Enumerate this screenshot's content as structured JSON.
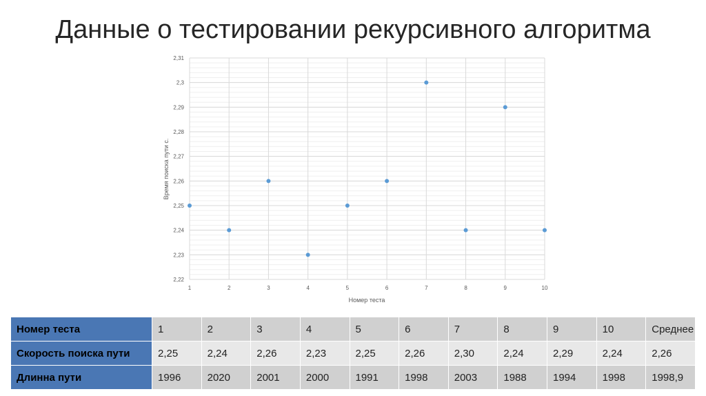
{
  "slide": {
    "title": "Данные о тестировании рекурсивного алгоритма"
  },
  "chart_data": {
    "type": "scatter",
    "x": [
      1,
      2,
      3,
      4,
      5,
      6,
      7,
      8,
      9,
      10
    ],
    "y": [
      2.25,
      2.24,
      2.26,
      2.23,
      2.25,
      2.26,
      2.3,
      2.24,
      2.29,
      2.24
    ],
    "xlabel": "Номер теста",
    "ylabel": "Время поиска пути с.",
    "xlim": [
      1,
      10
    ],
    "ylim": [
      2.22,
      2.31
    ],
    "x_ticks": [
      "1",
      "2",
      "3",
      "4",
      "5",
      "6",
      "7",
      "8",
      "9",
      "10"
    ],
    "y_ticks": [
      "2,22",
      "2,23",
      "2,24",
      "2,25",
      "2,26",
      "2,27",
      "2,28",
      "2,29",
      "2,3",
      "2,31"
    ],
    "grid": true,
    "marker_color": "#5b9bd5",
    "grid_color": "#d9d9d9"
  },
  "table": {
    "rows": [
      {
        "label": "Номер теста",
        "cells": [
          "1",
          "2",
          "3",
          "4",
          "5",
          "6",
          "7",
          "8",
          "9",
          "10",
          "Среднее"
        ]
      },
      {
        "label": "Скорость поиска пути",
        "cells": [
          "2,25",
          "2,24",
          "2,26",
          "2,23",
          "2,25",
          "2,26",
          "2,30",
          "2,24",
          "2,29",
          "2,24",
          "2,26"
        ]
      },
      {
        "label": "Длинна пути",
        "cells": [
          "1996",
          "2020",
          "2001",
          "2000",
          "1991",
          "1998",
          "2003",
          "1988",
          "1994",
          "1998",
          "1998,9"
        ]
      }
    ],
    "header_color": "#4a77b4"
  }
}
